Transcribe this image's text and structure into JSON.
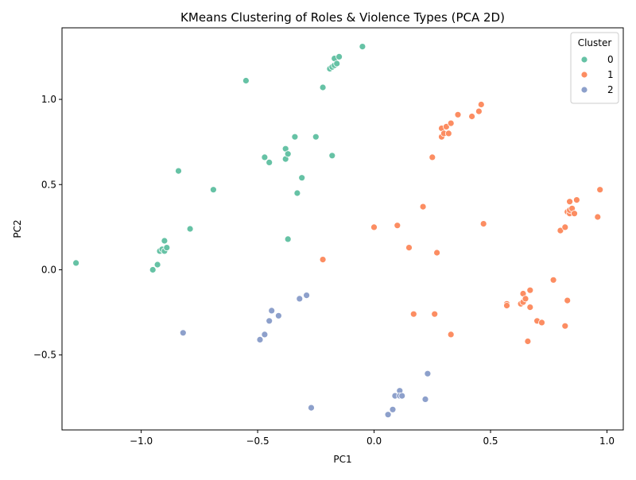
{
  "chart_data": {
    "type": "scatter",
    "title": "KMeans Clustering of Roles & Violence Types (PCA 2D)",
    "xlabel": "PC1",
    "ylabel": "PC2",
    "xlim": [
      -1.34,
      1.07
    ],
    "ylim": [
      -0.94,
      1.42
    ],
    "xticks": [
      -1.0,
      -0.5,
      0.0,
      0.5,
      1.0
    ],
    "xtick_labels": [
      "−1.0",
      "−0.5",
      "0.0",
      "0.5",
      "1.0"
    ],
    "yticks": [
      -0.5,
      0.0,
      0.5,
      1.0
    ],
    "ytick_labels": [
      "−0.5",
      "0.0",
      "0.5",
      "1.0"
    ],
    "grid": false,
    "legend": {
      "title": "Cluster",
      "placement": "top-right",
      "entries": [
        "0",
        "1",
        "2"
      ]
    },
    "series": [
      {
        "name": "0",
        "color": "#66c2a5",
        "points": [
          [
            -1.28,
            0.04
          ],
          [
            -0.95,
            0.0
          ],
          [
            -0.93,
            0.03
          ],
          [
            -0.92,
            0.11
          ],
          [
            -0.91,
            0.12
          ],
          [
            -0.9,
            0.11
          ],
          [
            -0.9,
            0.17
          ],
          [
            -0.89,
            0.13
          ],
          [
            -0.84,
            0.58
          ],
          [
            -0.79,
            0.24
          ],
          [
            -0.69,
            0.47
          ],
          [
            -0.55,
            1.11
          ],
          [
            -0.47,
            0.66
          ],
          [
            -0.45,
            0.63
          ],
          [
            -0.38,
            0.65
          ],
          [
            -0.38,
            0.71
          ],
          [
            -0.37,
            0.68
          ],
          [
            -0.37,
            0.18
          ],
          [
            -0.34,
            0.78
          ],
          [
            -0.33,
            0.45
          ],
          [
            -0.31,
            0.54
          ],
          [
            -0.25,
            0.78
          ],
          [
            -0.22,
            1.07
          ],
          [
            -0.19,
            1.18
          ],
          [
            -0.18,
            1.19
          ],
          [
            -0.18,
            0.67
          ],
          [
            -0.17,
            1.24
          ],
          [
            -0.17,
            1.2
          ],
          [
            -0.16,
            1.21
          ],
          [
            -0.15,
            1.25
          ],
          [
            -0.05,
            1.31
          ]
        ]
      },
      {
        "name": "1",
        "color": "#fc8d62",
        "points": [
          [
            -0.22,
            0.06
          ],
          [
            0.0,
            0.25
          ],
          [
            0.1,
            0.26
          ],
          [
            0.15,
            0.13
          ],
          [
            0.17,
            -0.26
          ],
          [
            0.21,
            0.37
          ],
          [
            0.25,
            0.66
          ],
          [
            0.26,
            -0.26
          ],
          [
            0.27,
            0.1
          ],
          [
            0.29,
            0.78
          ],
          [
            0.29,
            0.83
          ],
          [
            0.3,
            0.8
          ],
          [
            0.31,
            0.84
          ],
          [
            0.32,
            0.8
          ],
          [
            0.33,
            0.86
          ],
          [
            0.33,
            -0.38
          ],
          [
            0.36,
            0.91
          ],
          [
            0.42,
            0.9
          ],
          [
            0.45,
            0.93
          ],
          [
            0.46,
            0.97
          ],
          [
            0.47,
            0.27
          ],
          [
            0.57,
            -0.2
          ],
          [
            0.57,
            -0.21
          ],
          [
            0.63,
            -0.2
          ],
          [
            0.64,
            -0.14
          ],
          [
            0.64,
            -0.19
          ],
          [
            0.65,
            -0.17
          ],
          [
            0.66,
            -0.42
          ],
          [
            0.67,
            -0.12
          ],
          [
            0.67,
            -0.22
          ],
          [
            0.7,
            -0.3
          ],
          [
            0.72,
            -0.31
          ],
          [
            0.77,
            -0.06
          ],
          [
            0.8,
            0.23
          ],
          [
            0.82,
            0.25
          ],
          [
            0.82,
            -0.33
          ],
          [
            0.83,
            0.34
          ],
          [
            0.83,
            -0.18
          ],
          [
            0.84,
            0.33
          ],
          [
            0.84,
            0.35
          ],
          [
            0.84,
            0.4
          ],
          [
            0.85,
            0.36
          ],
          [
            0.86,
            0.33
          ],
          [
            0.87,
            0.41
          ],
          [
            0.96,
            0.31
          ],
          [
            0.97,
            0.47
          ]
        ]
      },
      {
        "name": "2",
        "color": "#8da0cb",
        "points": [
          [
            -0.82,
            -0.37
          ],
          [
            -0.49,
            -0.41
          ],
          [
            -0.47,
            -0.38
          ],
          [
            -0.45,
            -0.3
          ],
          [
            -0.44,
            -0.24
          ],
          [
            -0.41,
            -0.27
          ],
          [
            -0.32,
            -0.17
          ],
          [
            -0.29,
            -0.15
          ],
          [
            -0.27,
            -0.81
          ],
          [
            0.06,
            -0.85
          ],
          [
            0.08,
            -0.82
          ],
          [
            0.09,
            -0.74
          ],
          [
            0.11,
            -0.71
          ],
          [
            0.11,
            -0.74
          ],
          [
            0.12,
            -0.74
          ],
          [
            0.22,
            -0.76
          ],
          [
            0.23,
            -0.61
          ]
        ]
      }
    ]
  }
}
